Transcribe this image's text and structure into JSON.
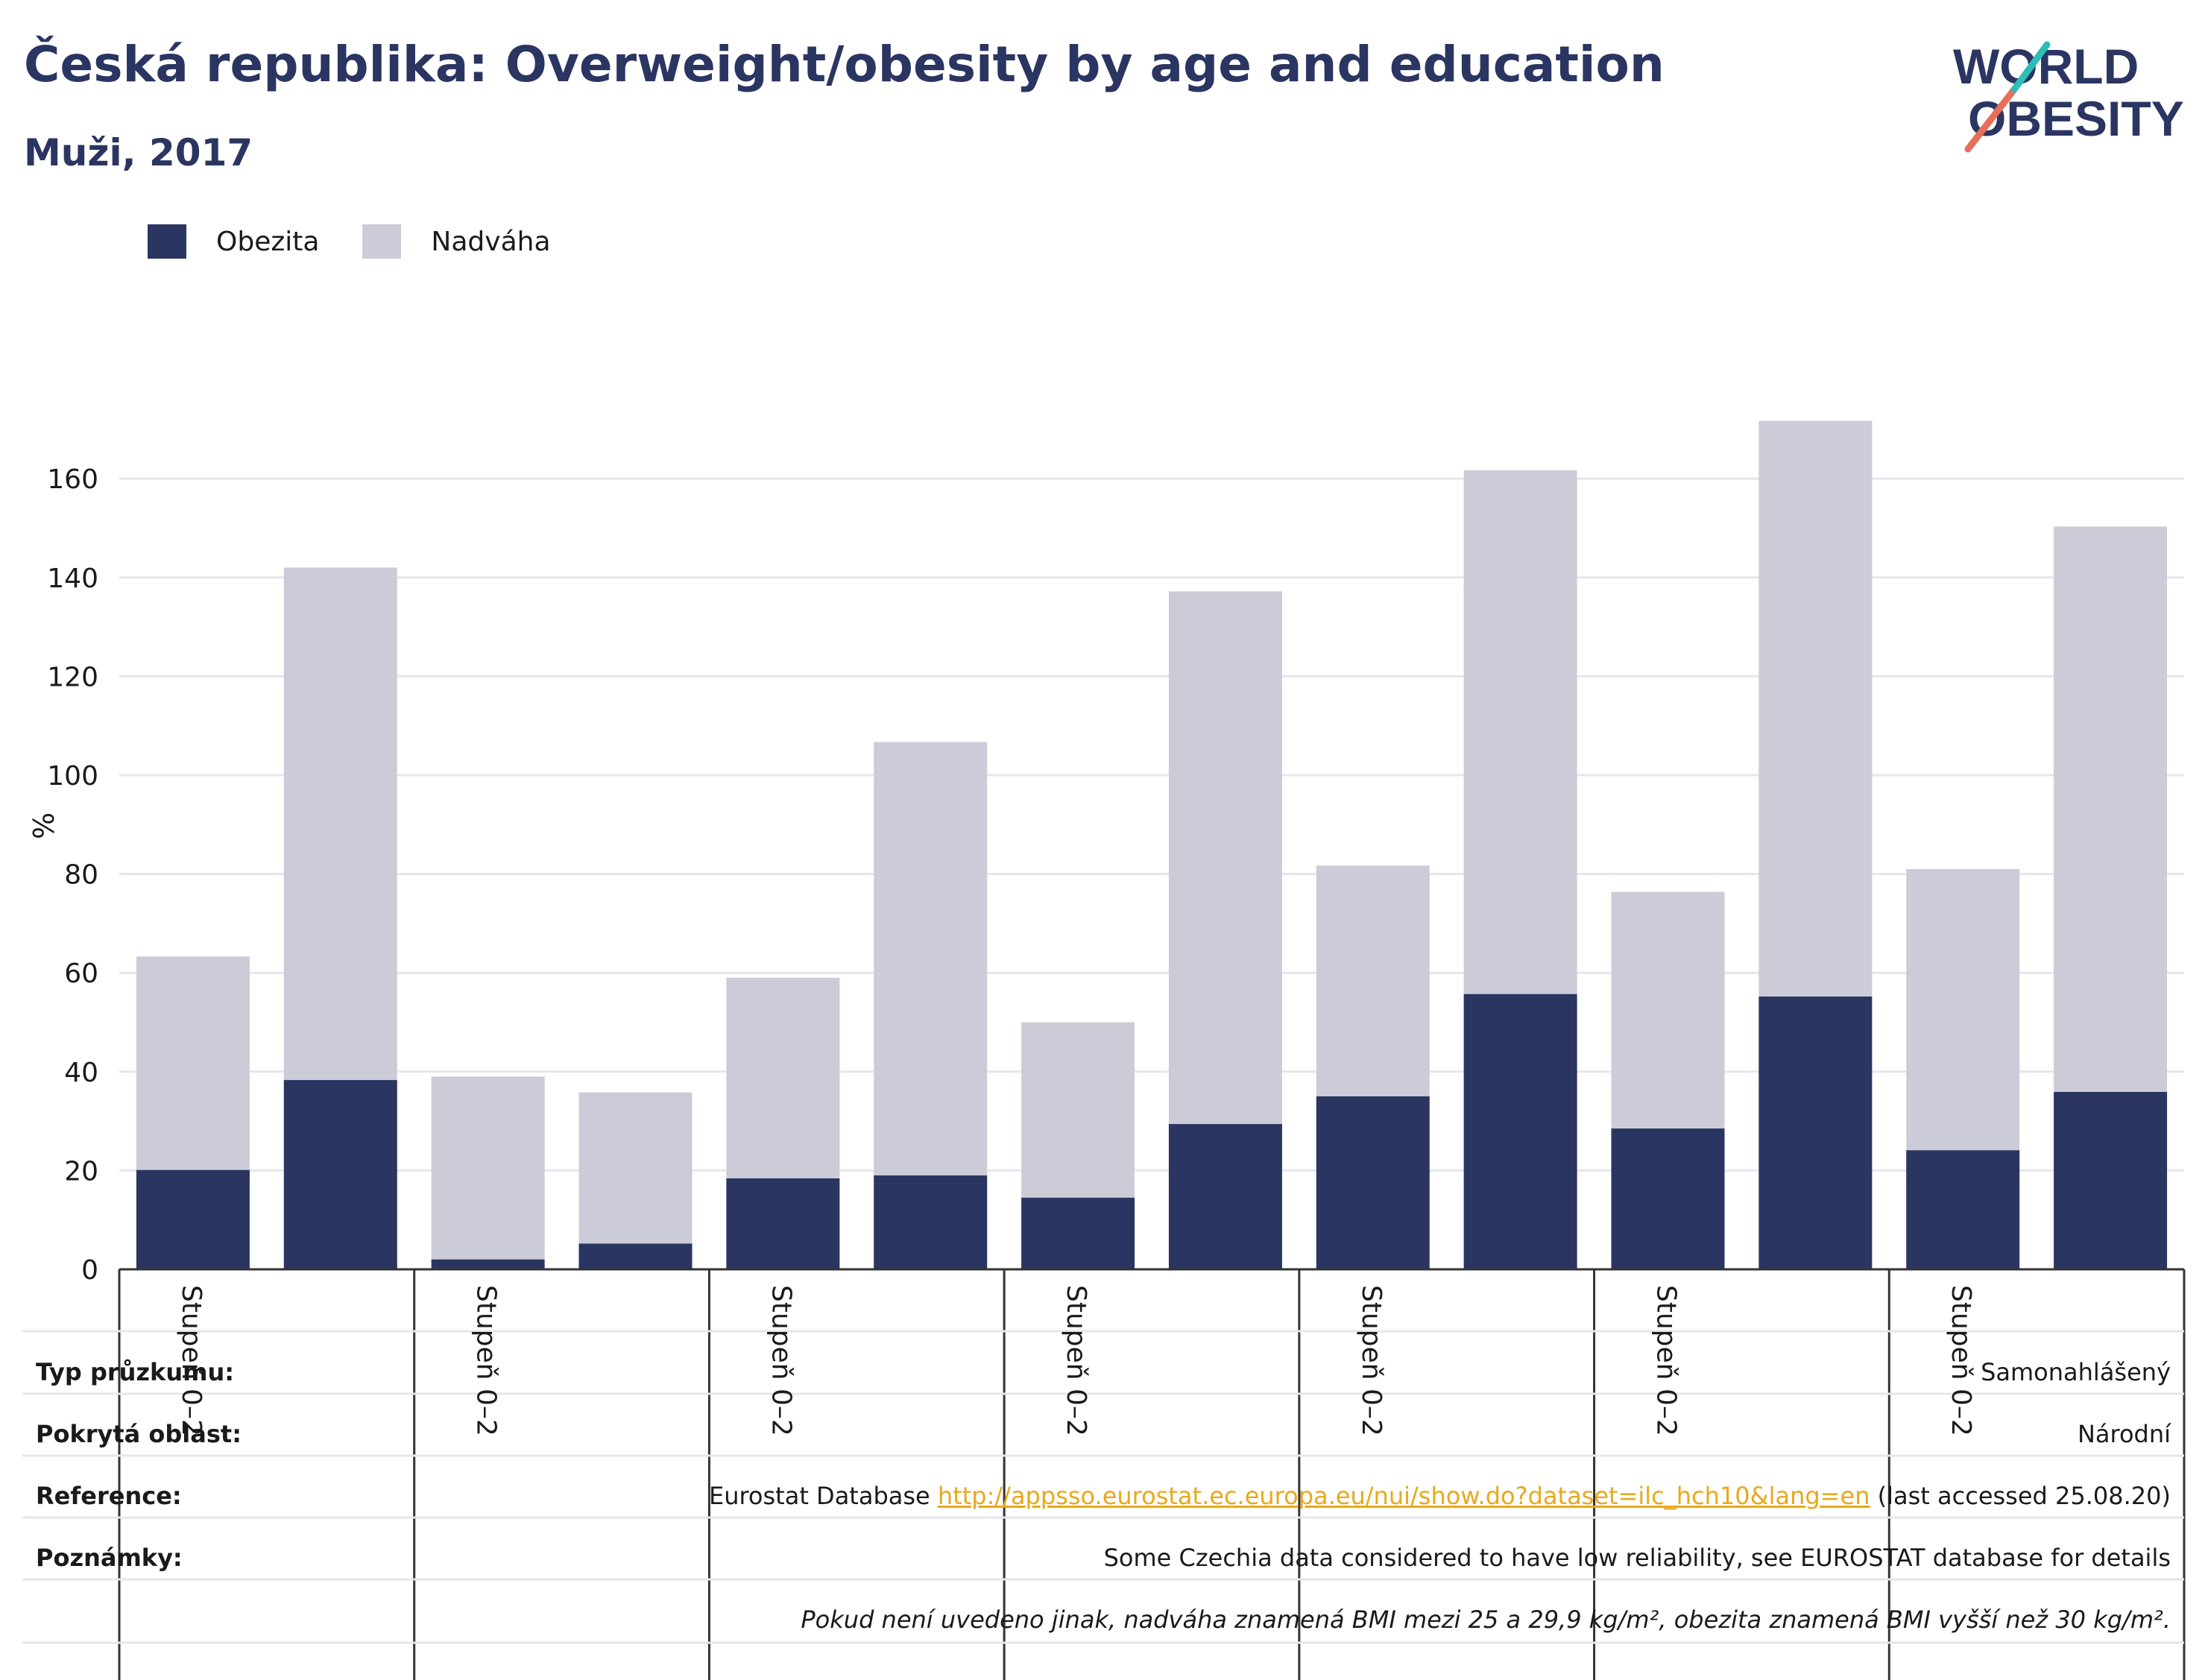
{
  "header": {
    "title": "Česká republika: Overweight/obesity by age and education",
    "subtitle": "Muži, 2017"
  },
  "logo": {
    "line1": "WORLD",
    "line2": "OBESITY",
    "colors": {
      "text": "#2b3562",
      "slash_teal": "#2ebdb7",
      "slash_coral": "#e76f5a"
    }
  },
  "colors": {
    "obesity": "#2b3562",
    "overweight": "#cbccd8",
    "grid": "#e6e6ee",
    "axis": "#333333",
    "link": "#e8a91c"
  },
  "chart_data": {
    "type": "bar",
    "stacked": true,
    "categories": [
      "Stupeň 0–2",
      "",
      "Stupeň 0–2",
      "",
      "Stupeň 0–2",
      "",
      "Stupeň 0–2",
      "",
      "Stupeň 0–2",
      "",
      "Stupeň 0–2",
      "",
      "Stupeň 0–2",
      ""
    ],
    "series": [
      {
        "name": "Obezita",
        "values": [
          20.1,
          38.3,
          2.0,
          5.2,
          18.4,
          19.0,
          14.5,
          29.4,
          35.0,
          55.7,
          28.5,
          55.2,
          24.1,
          35.9
        ]
      },
      {
        "name": "Nadváha",
        "values": [
          43.2,
          103.7,
          37.0,
          30.6,
          40.6,
          87.7,
          35.5,
          107.8,
          46.7,
          106.0,
          47.9,
          116.5,
          56.9,
          114.4
        ]
      }
    ],
    "ylabel": "%",
    "ylim": [
      0,
      175
    ],
    "yticks": [
      0,
      20,
      40,
      60,
      80,
      100,
      120,
      140,
      160
    ],
    "grid": true,
    "legend_position": "top-left"
  },
  "info_table": [
    {
      "label": "Typ průzkumu:",
      "value": "Samonahlášený"
    },
    {
      "label": "Pokrytá oblast:",
      "value": "Národní"
    },
    {
      "label": "Reference:",
      "value_prefix": "Eurostat Database ",
      "link": "http://appsso.eurostat.ec.europa.eu/nui/show.do?dataset=ilc_hch10&lang=en",
      "value_suffix": " (last accessed 25.08.20)"
    },
    {
      "label": "Poznámky:",
      "value": "Some Czechia data considered to have low reliability, see EUROSTAT database for details"
    },
    {
      "label": "",
      "value": "Pokud není uvedeno jinak, nadváha znamená BMI mezi 25 a 29,9 kg/m², obezita znamená BMI vyšší než 30 kg/m²."
    }
  ]
}
